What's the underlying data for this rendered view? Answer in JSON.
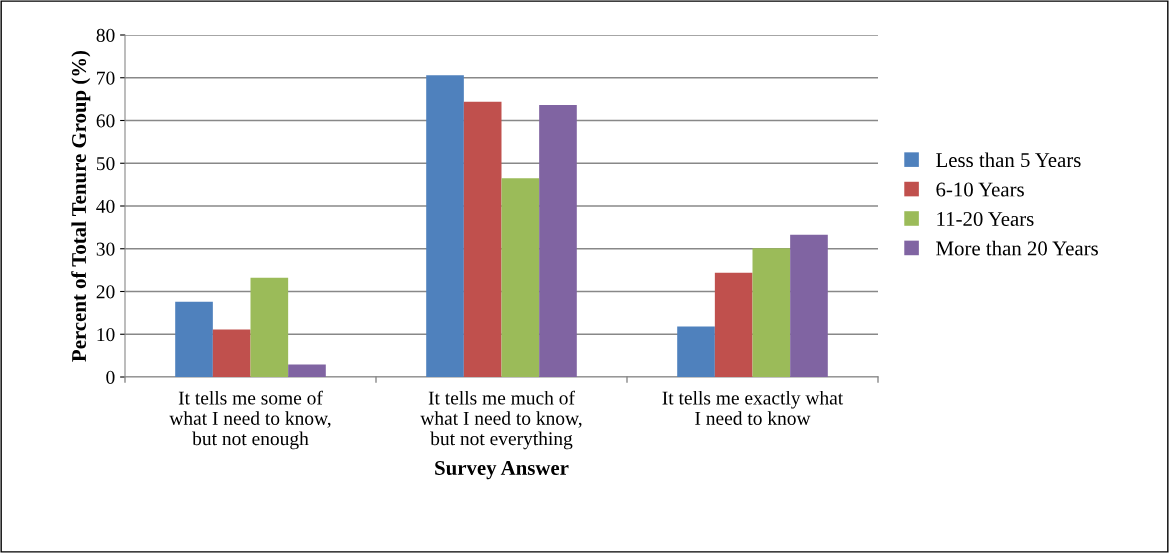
{
  "chart_data": {
    "type": "bar",
    "xlabel": "Survey Answer",
    "ylabel": "Percent of Total Tenure Group (%)",
    "categories": [
      "It tells me some of\nwhat I need to know,\nbut not enough",
      "It tells me much of\nwhat I need to know,\nbut not everything",
      "It tells me exactly what\nI need to know"
    ],
    "series": [
      {
        "name": "Less than 5 Years",
        "color": "#4f81bd",
        "values": [
          17.6,
          70.6,
          11.8
        ]
      },
      {
        "name": "6-10 Years",
        "color": "#c0504d",
        "values": [
          11.1,
          64.4,
          24.4
        ]
      },
      {
        "name": "11-20 Years",
        "color": "#9bbb59",
        "values": [
          23.2,
          46.5,
          30.1
        ]
      },
      {
        "name": "More than 20 Years",
        "color": "#8064a2",
        "values": [
          2.9,
          63.6,
          33.3
        ]
      }
    ],
    "ylim": [
      0,
      80
    ],
    "yticks": [
      0,
      10,
      20,
      30,
      40,
      50,
      60,
      70,
      80
    ],
    "grid": "y",
    "legend": "right"
  }
}
